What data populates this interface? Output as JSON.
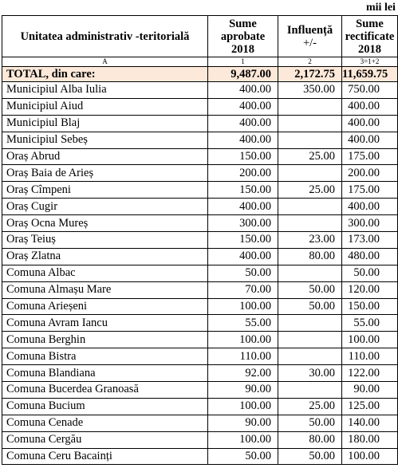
{
  "unit_note": "mii lei",
  "table": {
    "headers": {
      "name": "Unitatea administrativ -teritorială",
      "approved": [
        "Sume",
        "aprobate",
        "2018"
      ],
      "influence": [
        "Influență",
        "+/-"
      ],
      "rectified": [
        "Sume",
        "rectificate",
        "2018"
      ]
    },
    "index_row": [
      "A",
      "1",
      "2",
      "3=1+2"
    ],
    "total": {
      "name": "TOTAL, din care:",
      "approved": "9,487.00",
      "influence": "2,172.75",
      "rectified": "11,659.75"
    },
    "rows": [
      {
        "name": "Municipiul Alba Iulia",
        "approved": "400.00",
        "influence": "350.00",
        "rectified": "750.00"
      },
      {
        "name": "Municipiul Aiud",
        "approved": "400.00",
        "influence": "",
        "rectified": "400.00"
      },
      {
        "name": "Municipiul Blaj",
        "approved": "400.00",
        "influence": "",
        "rectified": "400.00"
      },
      {
        "name": "Municipiul Sebeș",
        "approved": "400.00",
        "influence": "",
        "rectified": "400.00"
      },
      {
        "name": "Oraș Abrud",
        "approved": "150.00",
        "influence": "25.00",
        "rectified": "175.00"
      },
      {
        "name": "Oraș Baia de Arieș",
        "approved": "200.00",
        "influence": "",
        "rectified": "200.00"
      },
      {
        "name": "Oraș Cîmpeni",
        "approved": "150.00",
        "influence": "25.00",
        "rectified": "175.00"
      },
      {
        "name": "Oraș Cugir",
        "approved": "400.00",
        "influence": "",
        "rectified": "400.00"
      },
      {
        "name": "Oraș Ocna Mureș",
        "approved": "300.00",
        "influence": "",
        "rectified": "300.00"
      },
      {
        "name": "Oraș Teiuș",
        "approved": "150.00",
        "influence": "23.00",
        "rectified": "173.00"
      },
      {
        "name": "Oraș Zlatna",
        "approved": "400.00",
        "influence": "80.00",
        "rectified": "480.00"
      },
      {
        "name": "Comuna Albac",
        "approved": "50.00",
        "influence": "",
        "rectified": "50.00"
      },
      {
        "name": "Comuna Almașu Mare",
        "approved": "70.00",
        "influence": "50.00",
        "rectified": "120.00"
      },
      {
        "name": "Comuna Arieșeni",
        "approved": "100.00",
        "influence": "50.00",
        "rectified": "150.00"
      },
      {
        "name": "Comuna Avram Iancu",
        "approved": "55.00",
        "influence": "",
        "rectified": "55.00"
      },
      {
        "name": "Comuna Berghin",
        "approved": "100.00",
        "influence": "",
        "rectified": "100.00"
      },
      {
        "name": "Comuna Bistra",
        "approved": "110.00",
        "influence": "",
        "rectified": "110.00"
      },
      {
        "name": "Comuna Blandiana",
        "approved": "92.00",
        "influence": "30.00",
        "rectified": "122.00"
      },
      {
        "name": "Comuna Bucerdea Granoasă",
        "approved": "90.00",
        "influence": "",
        "rectified": "90.00"
      },
      {
        "name": "Comuna Bucium",
        "approved": "100.00",
        "influence": "25.00",
        "rectified": "125.00"
      },
      {
        "name": "Comuna Cenade",
        "approved": "90.00",
        "influence": "50.00",
        "rectified": "140.00"
      },
      {
        "name": "Comuna Cergău",
        "approved": "100.00",
        "influence": "80.00",
        "rectified": "180.00"
      },
      {
        "name": "Comuna Ceru Bacainți",
        "approved": "50.00",
        "influence": "50.00",
        "rectified": "100.00"
      }
    ]
  }
}
